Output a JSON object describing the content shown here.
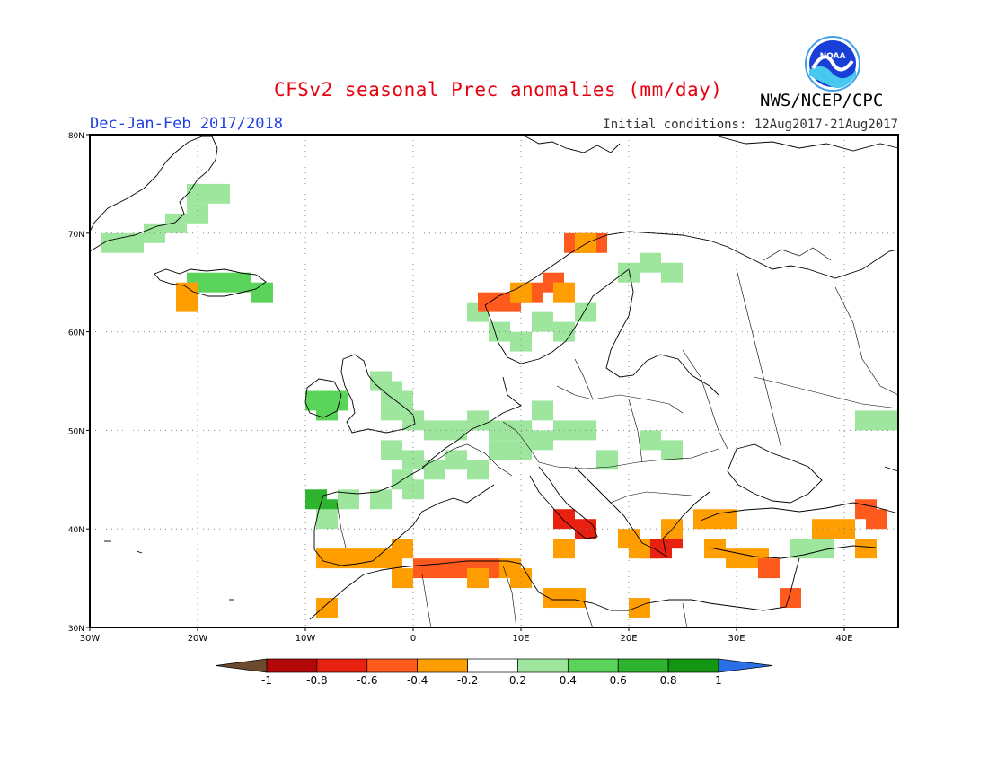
{
  "title": "CFSv2 seasonal Prec anomalies (mm/day)",
  "season": "Dec-Jan-Feb 2017/2018",
  "initial_conditions": "Initial conditions: 12Aug2017-21Aug2017",
  "agency": "NWS/NCEP/CPC",
  "logo_text": "NOAA",
  "map": {
    "lon_range": [
      -30,
      45
    ],
    "lat_range": [
      30,
      80
    ],
    "lon_ticks": [
      {
        "value": -30,
        "label": "30W"
      },
      {
        "value": -20,
        "label": "20W"
      },
      {
        "value": -10,
        "label": "10W"
      },
      {
        "value": 0,
        "label": "0"
      },
      {
        "value": 10,
        "label": "10E"
      },
      {
        "value": 20,
        "label": "20E"
      },
      {
        "value": 30,
        "label": "30E"
      },
      {
        "value": 40,
        "label": "40E"
      }
    ],
    "lat_ticks": [
      {
        "value": 80,
        "label": "80N"
      },
      {
        "value": 70,
        "label": "70N"
      },
      {
        "value": 60,
        "label": "60N"
      },
      {
        "value": 50,
        "label": "50N"
      },
      {
        "value": 40,
        "label": "40N"
      },
      {
        "value": 30,
        "label": "30N"
      }
    ],
    "grid": "dotted"
  },
  "colorbar": {
    "labels": [
      "-1",
      "-0.8",
      "-0.6",
      "-0.4",
      "-0.2",
      "0.2",
      "0.4",
      "0.6",
      "0.8",
      "1"
    ],
    "colors": [
      "#6b4a2e",
      "#b40808",
      "#e8200f",
      "#ff5a1e",
      "#ff9e00",
      "#ffffff",
      "#9ee69e",
      "#5ad45a",
      "#2eb42e",
      "#139613",
      "#2970e6"
    ]
  },
  "anomaly_regions": [
    {
      "name": "greenland",
      "level": 0.2,
      "cells": [
        [
          -28,
          69
        ],
        [
          -26,
          69
        ],
        [
          -24,
          70
        ],
        [
          -22,
          71
        ],
        [
          -20,
          72
        ],
        [
          -18,
          74
        ],
        [
          -20,
          74
        ]
      ]
    },
    {
      "name": "iceland",
      "level": 0.4,
      "cells": [
        [
          -20,
          65
        ],
        [
          -18,
          65
        ],
        [
          -16,
          65
        ],
        [
          -14,
          64
        ]
      ]
    },
    {
      "name": "iceland-dry",
      "level": -0.2,
      "cells": [
        [
          -21,
          64
        ],
        [
          -21,
          63
        ]
      ]
    },
    {
      "name": "ireland",
      "level": 0.4,
      "cells": [
        [
          -9,
          53
        ],
        [
          -8,
          52
        ],
        [
          -7,
          53
        ]
      ]
    },
    {
      "name": "britain",
      "level": 0.2,
      "cells": [
        [
          -3,
          55
        ],
        [
          -2,
          54
        ],
        [
          -1,
          53
        ],
        [
          -2,
          52
        ],
        [
          0,
          51
        ]
      ]
    },
    {
      "name": "central-europe",
      "level": 0.2,
      "cells": [
        [
          2,
          50
        ],
        [
          4,
          50
        ],
        [
          6,
          51
        ],
        [
          8,
          50
        ],
        [
          10,
          50
        ],
        [
          12,
          49
        ],
        [
          14,
          50
        ],
        [
          8,
          48
        ],
        [
          4,
          47
        ],
        [
          6,
          46
        ],
        [
          10,
          48
        ],
        [
          12,
          52
        ],
        [
          16,
          50
        ],
        [
          18,
          47
        ],
        [
          22,
          49
        ],
        [
          24,
          48
        ]
      ]
    },
    {
      "name": "france",
      "level": 0.2,
      "cells": [
        [
          -2,
          48
        ],
        [
          0,
          47
        ],
        [
          2,
          46
        ],
        [
          0,
          44
        ],
        [
          -1,
          45
        ]
      ]
    },
    {
      "name": "scandinavia",
      "level": 0.2,
      "cells": [
        [
          8,
          60
        ],
        [
          10,
          59
        ],
        [
          12,
          61
        ],
        [
          14,
          60
        ],
        [
          16,
          62
        ],
        [
          20,
          66
        ],
        [
          22,
          67
        ],
        [
          24,
          66
        ],
        [
          6,
          62
        ]
      ]
    },
    {
      "name": "iberia-nw",
      "level": 0.6,
      "cells": [
        [
          -9,
          43
        ],
        [
          -8,
          42
        ]
      ]
    },
    {
      "name": "iberia-nw-light",
      "level": 0.2,
      "cells": [
        [
          -8,
          41
        ],
        [
          -6,
          43
        ],
        [
          -3,
          43
        ]
      ]
    },
    {
      "name": "norway-coast-dry",
      "level": -0.4,
      "cells": [
        [
          7,
          63
        ],
        [
          9,
          63
        ],
        [
          11,
          64
        ],
        [
          13,
          65
        ],
        [
          15,
          69
        ],
        [
          17,
          69
        ]
      ]
    },
    {
      "name": "norway-coast-wet",
      "level": -0.2,
      "cells": [
        [
          10,
          64
        ],
        [
          14,
          64
        ],
        [
          16,
          69
        ]
      ]
    },
    {
      "name": "iberia-south",
      "level": -0.2,
      "cells": [
        [
          -8,
          37
        ],
        [
          -6,
          37
        ],
        [
          -4,
          37
        ],
        [
          -2,
          37
        ],
        [
          -1,
          38
        ]
      ]
    },
    {
      "name": "north-africa",
      "level": -0.4,
      "cells": [
        [
          1,
          36
        ],
        [
          3,
          36
        ],
        [
          5,
          36
        ],
        [
          7,
          36
        ]
      ]
    },
    {
      "name": "north-africa-light",
      "level": -0.2,
      "cells": [
        [
          -1,
          35
        ],
        [
          9,
          36
        ],
        [
          10,
          35
        ],
        [
          6,
          35
        ],
        [
          -8,
          32
        ]
      ]
    },
    {
      "name": "italy-south",
      "level": -0.6,
      "cells": [
        [
          14,
          41
        ],
        [
          16,
          40
        ]
      ]
    },
    {
      "name": "greece",
      "level": -0.6,
      "cells": [
        [
          23,
          38
        ],
        [
          24,
          39
        ],
        [
          22,
          38
        ]
      ]
    },
    {
      "name": "greece-light",
      "level": -0.2,
      "cells": [
        [
          21,
          38
        ],
        [
          20,
          39
        ],
        [
          24,
          40
        ],
        [
          27,
          41
        ],
        [
          29,
          41
        ],
        [
          14,
          38
        ]
      ]
    },
    {
      "name": "turkey-south",
      "level": -0.2,
      "cells": [
        [
          30,
          37
        ],
        [
          32,
          37
        ],
        [
          28,
          38
        ]
      ]
    },
    {
      "name": "cyprus-dry",
      "level": -0.4,
      "cells": [
        [
          33,
          36
        ]
      ]
    },
    {
      "name": "levant",
      "level": -0.4,
      "cells": [
        [
          35,
          33
        ]
      ]
    },
    {
      "name": "caucasus",
      "level": -0.4,
      "cells": [
        [
          42,
          42
        ],
        [
          43,
          41
        ]
      ]
    },
    {
      "name": "caucasus-light",
      "level": -0.2,
      "cells": [
        [
          40,
          40
        ],
        [
          38,
          40
        ],
        [
          42,
          38
        ]
      ]
    },
    {
      "name": "turkey-east-wet",
      "level": 0.2,
      "cells": [
        [
          36,
          38
        ],
        [
          38,
          38
        ]
      ]
    },
    {
      "name": "russia-east-wet",
      "level": 0.2,
      "cells": [
        [
          42,
          51
        ],
        [
          44,
          51
        ]
      ]
    },
    {
      "name": "libya",
      "level": -0.2,
      "cells": [
        [
          13,
          33
        ],
        [
          15,
          33
        ],
        [
          21,
          32
        ]
      ]
    }
  ]
}
